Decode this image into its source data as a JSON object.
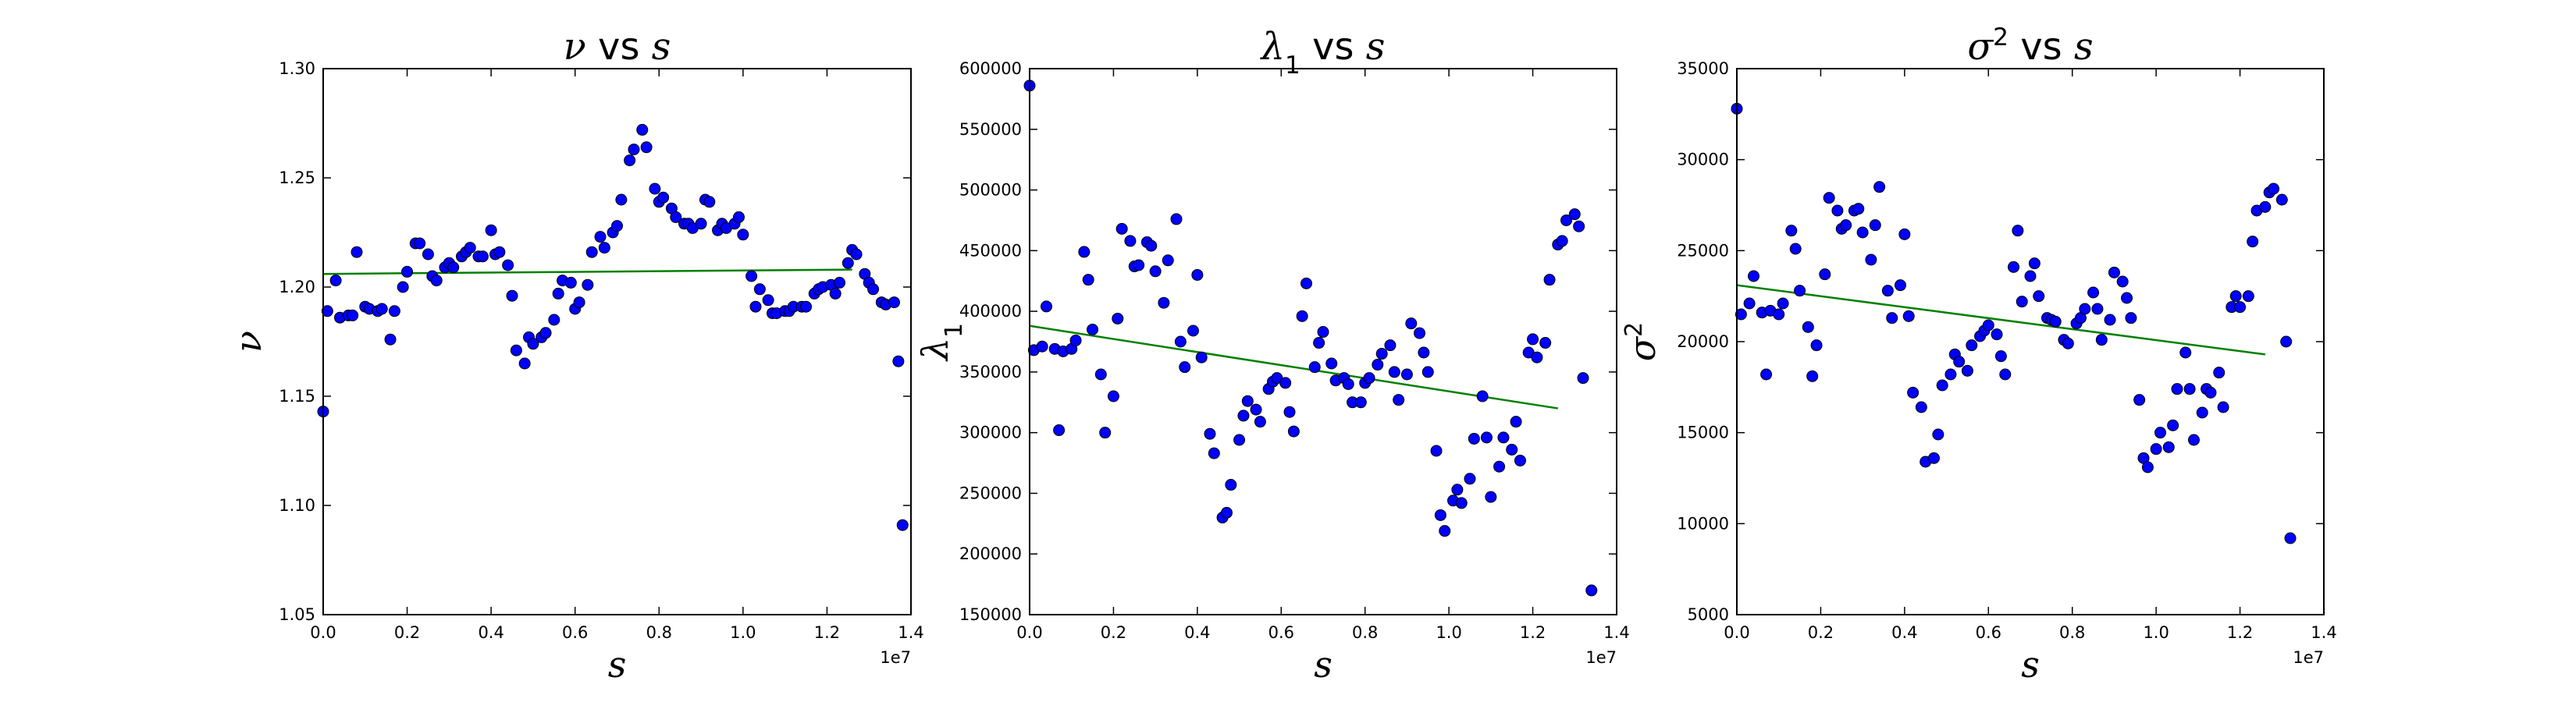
{
  "figure": {
    "background": "#ffffff",
    "marker_color": "#0000ff",
    "marker_edge": "#000000",
    "fit_color": "#008000",
    "axis_color": "#000000"
  },
  "chart_data": [
    {
      "type": "scatter",
      "title": "ν vs s",
      "title_parts": {
        "sym": "ν",
        "sup": "",
        "sub": "",
        "mid": " vs ",
        "var": "s"
      },
      "xlabel": "s",
      "ylabel": "ν",
      "ylabel_parts": {
        "sym": "ν",
        "sup": "",
        "sub": ""
      },
      "x_scale_label": "1e7",
      "xlim": [
        0,
        1.4
      ],
      "ylim": [
        1.05,
        1.3
      ],
      "xticks": [
        0.0,
        0.2,
        0.4,
        0.6,
        0.8,
        1.0,
        1.2,
        1.4
      ],
      "xtick_labels": [
        "0.0",
        "0.2",
        "0.4",
        "0.6",
        "0.8",
        "1.0",
        "1.2",
        "1.4"
      ],
      "yticks": [
        1.05,
        1.1,
        1.15,
        1.2,
        1.25,
        1.3
      ],
      "ytick_labels": [
        "1.05",
        "1.10",
        "1.15",
        "1.20",
        "1.25",
        "1.30"
      ],
      "grid": false,
      "fit_line": [
        [
          0.0,
          1.206
        ],
        [
          1.26,
          1.208
        ]
      ],
      "points": [
        [
          0.0,
          1.143
        ],
        [
          0.01,
          1.189
        ],
        [
          0.03,
          1.203
        ],
        [
          0.04,
          1.186
        ],
        [
          0.06,
          1.187
        ],
        [
          0.07,
          1.187
        ],
        [
          0.08,
          1.216
        ],
        [
          0.1,
          1.191
        ],
        [
          0.11,
          1.19
        ],
        [
          0.13,
          1.189
        ],
        [
          0.14,
          1.19
        ],
        [
          0.16,
          1.176
        ],
        [
          0.17,
          1.189
        ],
        [
          0.19,
          1.2
        ],
        [
          0.2,
          1.207
        ],
        [
          0.22,
          1.22
        ],
        [
          0.23,
          1.22
        ],
        [
          0.25,
          1.215
        ],
        [
          0.26,
          1.205
        ],
        [
          0.27,
          1.203
        ],
        [
          0.29,
          1.209
        ],
        [
          0.3,
          1.211
        ],
        [
          0.31,
          1.209
        ],
        [
          0.33,
          1.214
        ],
        [
          0.34,
          1.216
        ],
        [
          0.35,
          1.218
        ],
        [
          0.37,
          1.214
        ],
        [
          0.38,
          1.214
        ],
        [
          0.4,
          1.226
        ],
        [
          0.41,
          1.215
        ],
        [
          0.42,
          1.216
        ],
        [
          0.44,
          1.21
        ],
        [
          0.45,
          1.196
        ],
        [
          0.46,
          1.171
        ],
        [
          0.48,
          1.165
        ],
        [
          0.49,
          1.177
        ],
        [
          0.5,
          1.174
        ],
        [
          0.52,
          1.177
        ],
        [
          0.53,
          1.179
        ],
        [
          0.55,
          1.185
        ],
        [
          0.56,
          1.197
        ],
        [
          0.57,
          1.203
        ],
        [
          0.59,
          1.202
        ],
        [
          0.6,
          1.19
        ],
        [
          0.61,
          1.193
        ],
        [
          0.63,
          1.201
        ],
        [
          0.64,
          1.216
        ],
        [
          0.66,
          1.223
        ],
        [
          0.67,
          1.218
        ],
        [
          0.69,
          1.225
        ],
        [
          0.7,
          1.228
        ],
        [
          0.71,
          1.24
        ],
        [
          0.73,
          1.258
        ],
        [
          0.74,
          1.263
        ],
        [
          0.76,
          1.272
        ],
        [
          0.77,
          1.264
        ],
        [
          0.79,
          1.245
        ],
        [
          0.8,
          1.239
        ],
        [
          0.81,
          1.241
        ],
        [
          0.83,
          1.236
        ],
        [
          0.84,
          1.232
        ],
        [
          0.86,
          1.229
        ],
        [
          0.87,
          1.229
        ],
        [
          0.88,
          1.227
        ],
        [
          0.9,
          1.229
        ],
        [
          0.91,
          1.24
        ],
        [
          0.92,
          1.239
        ],
        [
          0.94,
          1.226
        ],
        [
          0.95,
          1.229
        ],
        [
          0.96,
          1.227
        ],
        [
          0.98,
          1.229
        ],
        [
          0.99,
          1.232
        ],
        [
          1.0,
          1.224
        ],
        [
          1.02,
          1.205
        ],
        [
          1.03,
          1.191
        ],
        [
          1.04,
          1.199
        ],
        [
          1.06,
          1.194
        ],
        [
          1.07,
          1.188
        ],
        [
          1.08,
          1.188
        ],
        [
          1.1,
          1.189
        ],
        [
          1.11,
          1.189
        ],
        [
          1.12,
          1.191
        ],
        [
          1.14,
          1.191
        ],
        [
          1.15,
          1.191
        ],
        [
          1.17,
          1.197
        ],
        [
          1.18,
          1.199
        ],
        [
          1.19,
          1.2
        ],
        [
          1.21,
          1.201
        ],
        [
          1.22,
          1.197
        ],
        [
          1.23,
          1.202
        ],
        [
          1.25,
          1.211
        ],
        [
          1.26,
          1.217
        ],
        [
          1.27,
          1.215
        ],
        [
          1.29,
          1.206
        ],
        [
          1.3,
          1.202
        ],
        [
          1.31,
          1.199
        ],
        [
          1.33,
          1.193
        ],
        [
          1.34,
          1.192
        ],
        [
          1.36,
          1.193
        ],
        [
          1.37,
          1.166
        ],
        [
          1.38,
          1.091
        ]
      ]
    },
    {
      "type": "scatter",
      "title": "λ₁ vs s",
      "title_parts": {
        "sym": "λ",
        "sup": "",
        "sub": "1",
        "mid": " vs ",
        "var": "s"
      },
      "xlabel": "s",
      "ylabel": "λ₁",
      "ylabel_parts": {
        "sym": "λ",
        "sup": "",
        "sub": "1"
      },
      "x_scale_label": "1e7",
      "xlim": [
        0,
        1.4
      ],
      "ylim": [
        150000,
        600000
      ],
      "xticks": [
        0.0,
        0.2,
        0.4,
        0.6,
        0.8,
        1.0,
        1.2,
        1.4
      ],
      "xtick_labels": [
        "0.0",
        "0.2",
        "0.4",
        "0.6",
        "0.8",
        "1.0",
        "1.2",
        "1.4"
      ],
      "yticks": [
        150000,
        200000,
        250000,
        300000,
        350000,
        400000,
        450000,
        500000,
        550000,
        600000
      ],
      "ytick_labels": [
        "150000",
        "200000",
        "250000",
        "300000",
        "350000",
        "400000",
        "450000",
        "500000",
        "550000",
        "600000"
      ],
      "grid": false,
      "fit_line": [
        [
          0.0,
          388000
        ],
        [
          1.26,
          320000
        ]
      ],
      "points": [
        [
          0.0,
          586000
        ],
        [
          0.01,
          368000
        ],
        [
          0.03,
          371000
        ],
        [
          0.04,
          404000
        ],
        [
          0.06,
          369000
        ],
        [
          0.07,
          302000
        ],
        [
          0.08,
          367000
        ],
        [
          0.1,
          369000
        ],
        [
          0.11,
          376000
        ],
        [
          0.13,
          449000
        ],
        [
          0.14,
          426000
        ],
        [
          0.15,
          385000
        ],
        [
          0.17,
          348000
        ],
        [
          0.18,
          300000
        ],
        [
          0.2,
          330000
        ],
        [
          0.21,
          394000
        ],
        [
          0.22,
          468000
        ],
        [
          0.24,
          458000
        ],
        [
          0.25,
          437000
        ],
        [
          0.26,
          438000
        ],
        [
          0.28,
          457000
        ],
        [
          0.29,
          454000
        ],
        [
          0.3,
          433000
        ],
        [
          0.32,
          407000
        ],
        [
          0.33,
          442000
        ],
        [
          0.35,
          476000
        ],
        [
          0.36,
          375000
        ],
        [
          0.37,
          354000
        ],
        [
          0.39,
          384000
        ],
        [
          0.4,
          430000
        ],
        [
          0.41,
          362000
        ],
        [
          0.43,
          299000
        ],
        [
          0.44,
          283000
        ],
        [
          0.46,
          230000
        ],
        [
          0.47,
          234000
        ],
        [
          0.48,
          257000
        ],
        [
          0.5,
          294000
        ],
        [
          0.51,
          314000
        ],
        [
          0.52,
          326000
        ],
        [
          0.54,
          319000
        ],
        [
          0.55,
          309000
        ],
        [
          0.57,
          336000
        ],
        [
          0.58,
          342000
        ],
        [
          0.59,
          345000
        ],
        [
          0.61,
          341000
        ],
        [
          0.62,
          317000
        ],
        [
          0.63,
          301000
        ],
        [
          0.65,
          396000
        ],
        [
          0.66,
          423000
        ],
        [
          0.68,
          354000
        ],
        [
          0.69,
          374000
        ],
        [
          0.7,
          383000
        ],
        [
          0.72,
          357000
        ],
        [
          0.73,
          343000
        ],
        [
          0.75,
          345000
        ],
        [
          0.76,
          340000
        ],
        [
          0.77,
          325000
        ],
        [
          0.79,
          325000
        ],
        [
          0.8,
          341000
        ],
        [
          0.81,
          345000
        ],
        [
          0.83,
          356000
        ],
        [
          0.84,
          365000
        ],
        [
          0.86,
          372000
        ],
        [
          0.87,
          350000
        ],
        [
          0.88,
          327000
        ],
        [
          0.9,
          348000
        ],
        [
          0.91,
          390000
        ],
        [
          0.93,
          382000
        ],
        [
          0.94,
          366000
        ],
        [
          0.95,
          350000
        ],
        [
          0.97,
          285000
        ],
        [
          0.98,
          232000
        ],
        [
          0.99,
          219000
        ],
        [
          1.01,
          244000
        ],
        [
          1.02,
          253000
        ],
        [
          1.03,
          242000
        ],
        [
          1.05,
          262000
        ],
        [
          1.06,
          295000
        ],
        [
          1.08,
          330000
        ],
        [
          1.09,
          296000
        ],
        [
          1.1,
          247000
        ],
        [
          1.12,
          272000
        ],
        [
          1.13,
          296000
        ],
        [
          1.15,
          286000
        ],
        [
          1.16,
          309000
        ],
        [
          1.17,
          277000
        ],
        [
          1.19,
          366000
        ],
        [
          1.2,
          377000
        ],
        [
          1.21,
          362000
        ],
        [
          1.23,
          374000
        ],
        [
          1.24,
          426000
        ],
        [
          1.26,
          455000
        ],
        [
          1.27,
          458000
        ],
        [
          1.28,
          475000
        ],
        [
          1.3,
          480000
        ],
        [
          1.31,
          470000
        ],
        [
          1.32,
          345000
        ],
        [
          1.34,
          170000
        ]
      ]
    },
    {
      "type": "scatter",
      "title": "σ² vs s",
      "title_parts": {
        "sym": "σ",
        "sup": "2",
        "sub": "",
        "mid": " vs ",
        "var": "s"
      },
      "xlabel": "s",
      "ylabel": "σ²",
      "ylabel_parts": {
        "sym": "σ",
        "sup": "2",
        "sub": ""
      },
      "x_scale_label": "1e7",
      "xlim": [
        0,
        1.4
      ],
      "ylim": [
        5000,
        35000
      ],
      "xticks": [
        0.0,
        0.2,
        0.4,
        0.6,
        0.8,
        1.0,
        1.2,
        1.4
      ],
      "xtick_labels": [
        "0.0",
        "0.2",
        "0.4",
        "0.6",
        "0.8",
        "1.0",
        "1.2",
        "1.4"
      ],
      "yticks": [
        5000,
        10000,
        15000,
        20000,
        25000,
        30000,
        35000
      ],
      "ytick_labels": [
        "5000",
        "10000",
        "15000",
        "20000",
        "25000",
        "30000",
        "35000"
      ],
      "grid": false,
      "fit_line": [
        [
          0.0,
          23100
        ],
        [
          1.26,
          19300
        ]
      ],
      "points": [
        [
          0.0,
          32800
        ],
        [
          0.01,
          21500
        ],
        [
          0.03,
          22100
        ],
        [
          0.04,
          23600
        ],
        [
          0.06,
          21600
        ],
        [
          0.07,
          18200
        ],
        [
          0.08,
          21700
        ],
        [
          0.1,
          21500
        ],
        [
          0.11,
          22100
        ],
        [
          0.13,
          26100
        ],
        [
          0.14,
          25100
        ],
        [
          0.15,
          22800
        ],
        [
          0.17,
          20800
        ],
        [
          0.18,
          18100
        ],
        [
          0.19,
          19800
        ],
        [
          0.21,
          23700
        ],
        [
          0.22,
          27900
        ],
        [
          0.24,
          27200
        ],
        [
          0.25,
          26200
        ],
        [
          0.26,
          26400
        ],
        [
          0.28,
          27200
        ],
        [
          0.29,
          27300
        ],
        [
          0.3,
          26000
        ],
        [
          0.32,
          24500
        ],
        [
          0.33,
          26400
        ],
        [
          0.34,
          28500
        ],
        [
          0.36,
          22800
        ],
        [
          0.37,
          21300
        ],
        [
          0.39,
          23100
        ],
        [
          0.4,
          25900
        ],
        [
          0.41,
          21400
        ],
        [
          0.42,
          17200
        ],
        [
          0.44,
          16400
        ],
        [
          0.45,
          13400
        ],
        [
          0.47,
          13600
        ],
        [
          0.48,
          14900
        ],
        [
          0.49,
          17600
        ],
        [
          0.51,
          18200
        ],
        [
          0.52,
          19300
        ],
        [
          0.53,
          18900
        ],
        [
          0.55,
          18400
        ],
        [
          0.56,
          19800
        ],
        [
          0.58,
          20300
        ],
        [
          0.59,
          20600
        ],
        [
          0.6,
          20900
        ],
        [
          0.62,
          20400
        ],
        [
          0.63,
          19200
        ],
        [
          0.64,
          18200
        ],
        [
          0.66,
          24100
        ],
        [
          0.67,
          26100
        ],
        [
          0.68,
          22200
        ],
        [
          0.7,
          23600
        ],
        [
          0.71,
          24300
        ],
        [
          0.72,
          22500
        ],
        [
          0.74,
          21300
        ],
        [
          0.75,
          21200
        ],
        [
          0.76,
          21100
        ],
        [
          0.78,
          20100
        ],
        [
          0.79,
          19900
        ],
        [
          0.81,
          21000
        ],
        [
          0.82,
          21300
        ],
        [
          0.83,
          21800
        ],
        [
          0.85,
          22700
        ],
        [
          0.86,
          21800
        ],
        [
          0.87,
          20100
        ],
        [
          0.89,
          21200
        ],
        [
          0.9,
          23800
        ],
        [
          0.92,
          23300
        ],
        [
          0.93,
          22400
        ],
        [
          0.94,
          21300
        ],
        [
          0.96,
          16800
        ],
        [
          0.97,
          13600
        ],
        [
          0.98,
          13100
        ],
        [
          1.0,
          14100
        ],
        [
          1.01,
          15000
        ],
        [
          1.03,
          14200
        ],
        [
          1.04,
          15400
        ],
        [
          1.05,
          17400
        ],
        [
          1.07,
          19400
        ],
        [
          1.08,
          17400
        ],
        [
          1.09,
          14600
        ],
        [
          1.11,
          16100
        ],
        [
          1.12,
          17400
        ],
        [
          1.13,
          17200
        ],
        [
          1.15,
          18300
        ],
        [
          1.16,
          16400
        ],
        [
          1.18,
          21900
        ],
        [
          1.19,
          22500
        ],
        [
          1.2,
          21900
        ],
        [
          1.22,
          22500
        ],
        [
          1.23,
          25500
        ],
        [
          1.24,
          27200
        ],
        [
          1.26,
          27400
        ],
        [
          1.27,
          28200
        ],
        [
          1.28,
          28400
        ],
        [
          1.3,
          27800
        ],
        [
          1.31,
          20000
        ],
        [
          1.32,
          9200
        ]
      ]
    }
  ]
}
